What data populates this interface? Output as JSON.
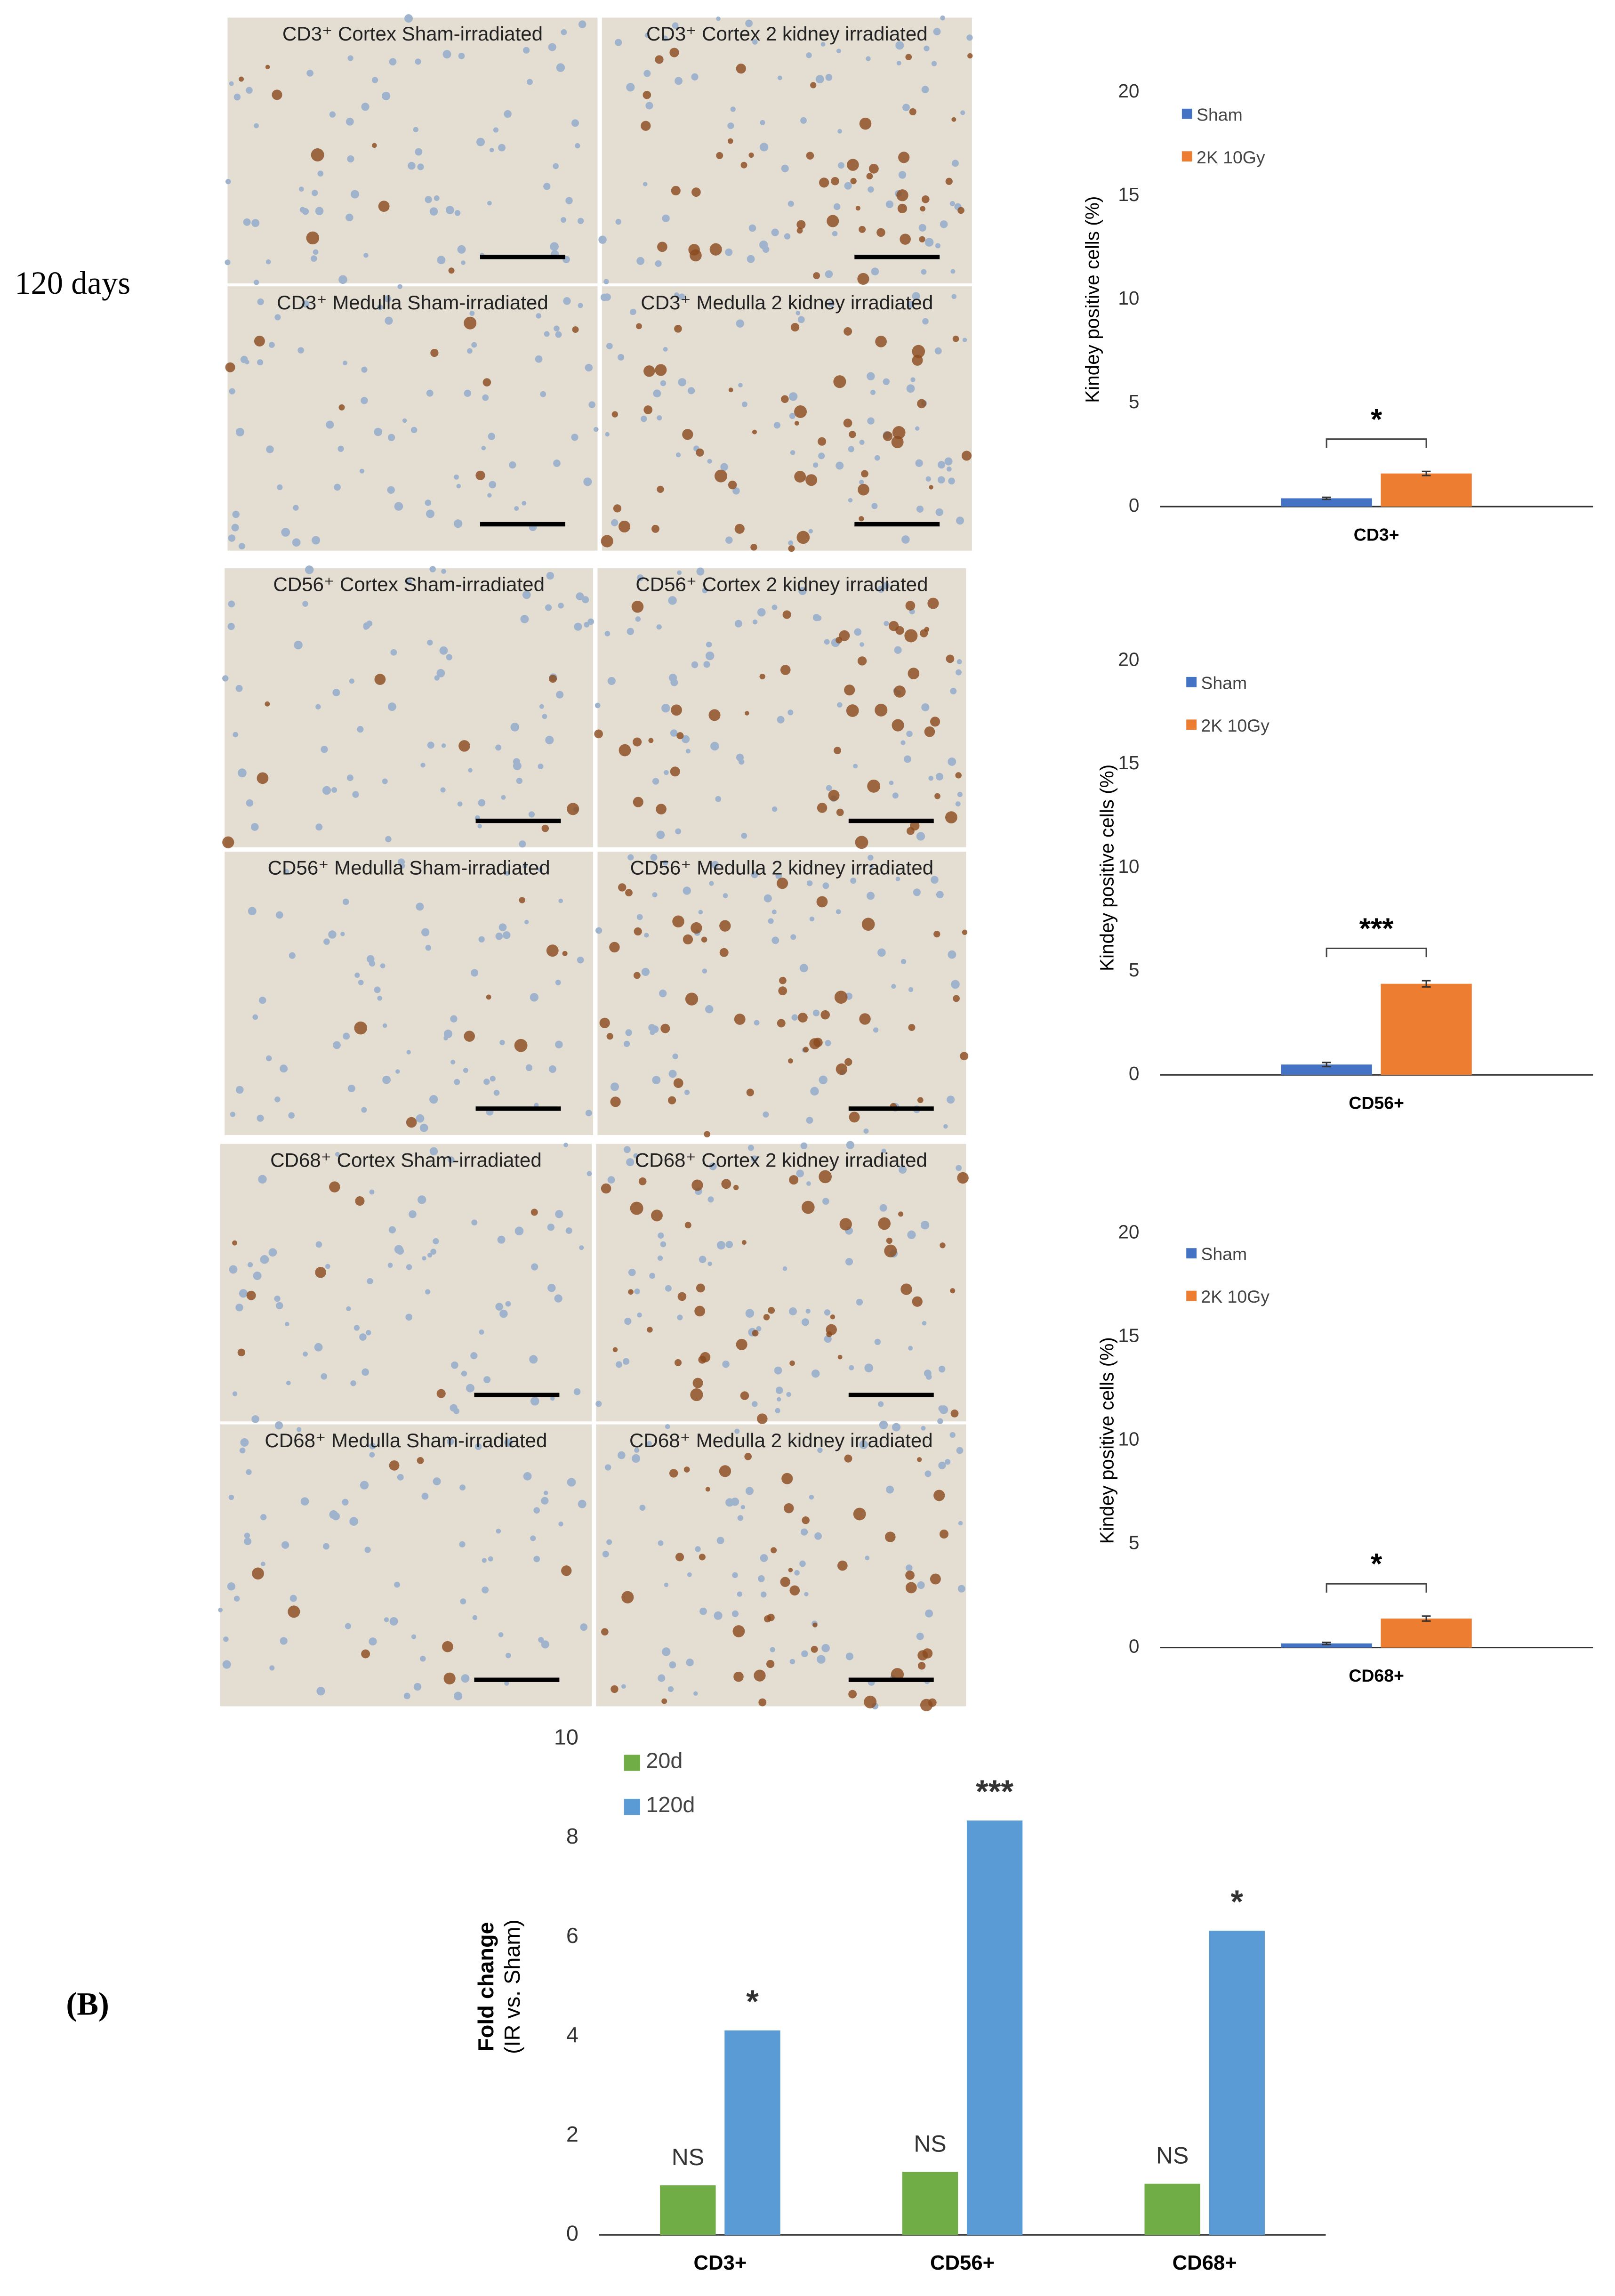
{
  "row_label": "120 days",
  "panel_label": "(B)",
  "micrographs": [
    {
      "label": "CD3⁺ Cortex Sham-irradiated"
    },
    {
      "label": "CD3⁺ Cortex 2 kidney irradiated"
    },
    {
      "label": "CD3⁺ Medulla Sham-irradiated"
    },
    {
      "label": "CD3⁺ Medulla 2 kidney irradiated"
    },
    {
      "label": "CD56⁺ Cortex Sham-irradiated"
    },
    {
      "label": "CD56⁺ Cortex 2 kidney irradiated"
    },
    {
      "label": "CD56⁺ Medulla Sham-irradiated"
    },
    {
      "label": "CD56⁺ Medulla 2 kidney irradiated"
    },
    {
      "label": "CD68⁺ Cortex Sham-irradiated"
    },
    {
      "label": "CD68⁺ Cortex 2 kidney irradiated"
    },
    {
      "label": "CD68⁺ Medulla Sham-irradiated"
    },
    {
      "label": "CD68⁺ Medulla 2 kidney irradiated"
    }
  ],
  "chart_data": [
    {
      "type": "bar",
      "ylabel": "Kindey positive cells (%)",
      "categories": [
        "CD3+"
      ],
      "ylim": [
        0,
        20
      ],
      "yticks": [
        0,
        5,
        10,
        15,
        20
      ],
      "legend": "top-left",
      "annotation": "*",
      "series": [
        {
          "name": "Sham",
          "color": "#4472c4",
          "values": [
            0.4
          ],
          "errors": [
            0.05
          ]
        },
        {
          "name": "2K 10Gy",
          "color": "#ed7d31",
          "values": [
            1.6
          ],
          "errors": [
            0.1
          ]
        }
      ]
    },
    {
      "type": "bar",
      "ylabel": "Kindey positive cells (%)",
      "categories": [
        "CD56+"
      ],
      "ylim": [
        0,
        20
      ],
      "yticks": [
        0,
        5,
        10,
        15,
        20
      ],
      "legend": "top-left",
      "annotation": "***",
      "series": [
        {
          "name": "Sham",
          "color": "#4472c4",
          "values": [
            0.5
          ],
          "errors": [
            0.1
          ]
        },
        {
          "name": "2K 10Gy",
          "color": "#ed7d31",
          "values": [
            4.4
          ],
          "errors": [
            0.15
          ]
        }
      ]
    },
    {
      "type": "bar",
      "ylabel": "Kindey positive cells (%)",
      "categories": [
        "CD68+"
      ],
      "ylim": [
        0,
        20
      ],
      "yticks": [
        0,
        5,
        10,
        15,
        20
      ],
      "legend": "top-left",
      "annotation": "*",
      "series": [
        {
          "name": "Sham",
          "color": "#4472c4",
          "values": [
            0.2
          ],
          "errors": [
            0.05
          ]
        },
        {
          "name": "2K 10Gy",
          "color": "#ed7d31",
          "values": [
            1.4
          ],
          "errors": [
            0.12
          ]
        }
      ]
    },
    {
      "type": "bar",
      "ylabel": "Fold change",
      "ylabel_sub": "(IR vs. Sham)",
      "categories": [
        "CD3+",
        "CD56+",
        "CD68+"
      ],
      "ylim": [
        0,
        10
      ],
      "yticks": [
        0,
        2,
        4,
        6,
        8,
        10
      ],
      "legend": "top-left",
      "series": [
        {
          "name": "20d",
          "color": "#70ad47",
          "values": [
            1.0,
            1.27,
            1.03
          ],
          "labels": [
            "NS",
            "NS",
            "NS"
          ]
        },
        {
          "name": "120d",
          "color": "#5b9bd5",
          "values": [
            4.12,
            8.35,
            6.13
          ],
          "labels": [
            "*",
            "***",
            "*"
          ]
        }
      ]
    }
  ]
}
